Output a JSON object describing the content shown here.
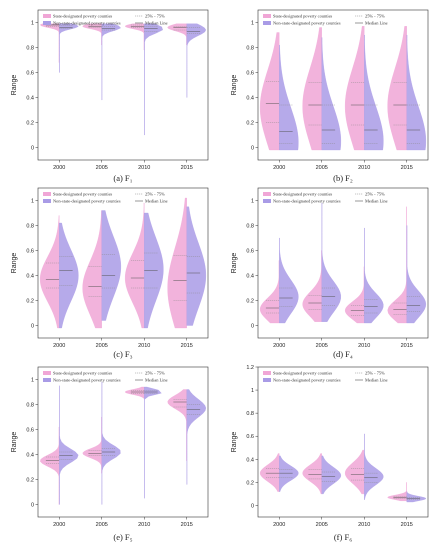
{
  "colors": {
    "state": "#f0a6d6",
    "non_state": "#a99be6",
    "median": "#555555",
    "quartile": "#888888"
  },
  "legend": {
    "state": "State-designated poverty counties",
    "non_state": "Non-state-designated poverty counties",
    "quartile": "25% - 75%",
    "median": "Median Line"
  },
  "chart_data": [
    {
      "type": "violin",
      "caption": "(a) F₁",
      "ylabel": "Range",
      "ylim": [
        -0.1,
        1.1
      ],
      "yticks": [
        0.0,
        0.2,
        0.4,
        0.6,
        0.8,
        1.0
      ],
      "categories": [
        "2000",
        "2005",
        "2010",
        "2015"
      ],
      "series": [
        {
          "name": "State-designated poverty counties",
          "min": [
            0.68,
            0.82,
            0.78,
            0.82
          ],
          "max": [
            0.99,
            0.99,
            0.99,
            0.99
          ],
          "peak": [
            0.98,
            0.97,
            0.97,
            0.96
          ],
          "q1": [
            0.97,
            0.96,
            0.96,
            0.94
          ],
          "median": [
            0.98,
            0.97,
            0.97,
            0.96
          ],
          "q3": [
            0.985,
            0.98,
            0.98,
            0.97
          ]
        },
        {
          "name": "Non-state-designated poverty counties",
          "min": [
            0.6,
            0.38,
            0.1,
            0.4
          ],
          "max": [
            0.99,
            0.99,
            0.99,
            0.99
          ],
          "peak": [
            0.97,
            0.96,
            0.95,
            0.94
          ],
          "q1": [
            0.95,
            0.94,
            0.93,
            0.91
          ],
          "median": [
            0.96,
            0.95,
            0.95,
            0.93
          ],
          "q3": [
            0.975,
            0.97,
            0.97,
            0.96
          ]
        }
      ]
    },
    {
      "type": "violin",
      "caption": "(b) F₂",
      "ylabel": "Range",
      "ylim": [
        -0.1,
        1.1
      ],
      "yticks": [
        0.0,
        0.2,
        0.4,
        0.6,
        0.8,
        1.0
      ],
      "categories": [
        "2000",
        "2005",
        "2010",
        "2015"
      ],
      "series": [
        {
          "name": "State-designated poverty counties",
          "min": [
            -0.02,
            -0.02,
            -0.02,
            -0.02
          ],
          "max": [
            0.92,
            0.96,
            0.97,
            0.97
          ],
          "peak": [
            0.32,
            0.33,
            0.33,
            0.33
          ],
          "q1": [
            0.2,
            0.18,
            0.18,
            0.18
          ],
          "median": [
            0.35,
            0.34,
            0.34,
            0.34
          ],
          "q3": [
            0.53,
            0.52,
            0.52,
            0.52
          ]
        },
        {
          "name": "Non-state-designated poverty counties",
          "min": [
            -0.02,
            -0.02,
            -0.02,
            -0.02
          ],
          "max": [
            0.82,
            0.88,
            0.9,
            0.9
          ],
          "peak": [
            0.04,
            0.05,
            0.05,
            0.05
          ],
          "q1": [
            0.03,
            0.03,
            0.03,
            0.03
          ],
          "median": [
            0.13,
            0.14,
            0.14,
            0.14
          ],
          "q3": [
            0.34,
            0.34,
            0.34,
            0.34
          ]
        }
      ]
    },
    {
      "type": "violin",
      "caption": "(c) F₃",
      "ylabel": "Range",
      "ylim": [
        -0.1,
        1.1
      ],
      "yticks": [
        0.0,
        0.2,
        0.4,
        0.6,
        0.8,
        1.0
      ],
      "categories": [
        "2000",
        "2005",
        "2010",
        "2015"
      ],
      "series": [
        {
          "name": "State-designated poverty counties",
          "min": [
            -0.02,
            -0.02,
            -0.02,
            -0.02
          ],
          "max": [
            0.88,
            0.92,
            0.98,
            1.02
          ],
          "peak": [
            0.37,
            0.3,
            0.38,
            0.3
          ],
          "q1": [
            0.3,
            0.23,
            0.3,
            0.2
          ],
          "median": [
            0.37,
            0.31,
            0.38,
            0.36
          ],
          "q3": [
            0.5,
            0.47,
            0.52,
            0.56
          ]
        },
        {
          "name": "Non-state-designated poverty counties",
          "min": [
            -0.02,
            0.04,
            -0.02,
            0.0
          ],
          "max": [
            0.82,
            0.92,
            0.9,
            0.95
          ],
          "peak": [
            0.4,
            0.47,
            0.45,
            0.4
          ],
          "q1": [
            0.32,
            0.3,
            0.3,
            0.26
          ],
          "median": [
            0.44,
            0.4,
            0.44,
            0.42
          ],
          "q3": [
            0.55,
            0.57,
            0.58,
            0.55
          ]
        }
      ]
    },
    {
      "type": "violin",
      "caption": "(d) F₄",
      "ylabel": "Range",
      "ylim": [
        -0.1,
        1.1
      ],
      "yticks": [
        0.0,
        0.2,
        0.4,
        0.6,
        0.8,
        1.0
      ],
      "categories": [
        "2000",
        "2005",
        "2010",
        "2015"
      ],
      "series": [
        {
          "name": "State-designated poverty counties",
          "min": [
            0.02,
            0.03,
            0.02,
            0.02
          ],
          "max": [
            0.52,
            0.6,
            0.47,
            0.95
          ],
          "peak": [
            0.13,
            0.17,
            0.12,
            0.12
          ],
          "q1": [
            0.1,
            0.13,
            0.08,
            0.09
          ],
          "median": [
            0.14,
            0.18,
            0.12,
            0.13
          ],
          "q3": [
            0.2,
            0.24,
            0.16,
            0.18
          ]
        },
        {
          "name": "Non-state-designated poverty counties",
          "min": [
            0.02,
            0.03,
            0.02,
            0.02
          ],
          "max": [
            0.7,
            0.98,
            0.78,
            0.8
          ],
          "peak": [
            0.23,
            0.23,
            0.16,
            0.17
          ],
          "q1": [
            0.15,
            0.16,
            0.1,
            0.11
          ],
          "median": [
            0.22,
            0.23,
            0.15,
            0.16
          ],
          "q3": [
            0.3,
            0.3,
            0.21,
            0.23
          ]
        }
      ]
    },
    {
      "type": "violin",
      "caption": "(e) F₅",
      "ylabel": "Range",
      "ylim": [
        -0.1,
        1.1
      ],
      "yticks": [
        0.0,
        0.2,
        0.4,
        0.6,
        0.8,
        1.0
      ],
      "categories": [
        "2000",
        "2005",
        "2010",
        "2015"
      ],
      "series": [
        {
          "name": "State-designated poverty counties",
          "min": [
            0.0,
            0.25,
            0.85,
            0.35
          ],
          "max": [
            0.62,
            0.7,
            0.94,
            0.92
          ],
          "peak": [
            0.35,
            0.41,
            0.9,
            0.82
          ],
          "q1": [
            0.33,
            0.39,
            0.89,
            0.78
          ],
          "median": [
            0.35,
            0.41,
            0.9,
            0.82
          ],
          "q3": [
            0.38,
            0.43,
            0.91,
            0.84
          ]
        },
        {
          "name": "Non-state-designated poverty counties",
          "min": [
            0.0,
            0.0,
            0.05,
            0.16
          ],
          "max": [
            0.95,
            0.98,
            0.94,
            0.92
          ],
          "peak": [
            0.39,
            0.42,
            0.9,
            0.77
          ],
          "q1": [
            0.36,
            0.39,
            0.89,
            0.72
          ],
          "median": [
            0.39,
            0.42,
            0.9,
            0.76
          ],
          "q3": [
            0.42,
            0.45,
            0.91,
            0.8
          ]
        }
      ]
    },
    {
      "type": "violin",
      "caption": "(f) F₆",
      "ylabel": "Range",
      "ylim": [
        -0.1,
        1.2
      ],
      "yticks": [
        0.0,
        0.2,
        0.4,
        0.6,
        0.8,
        1.0,
        1.2
      ],
      "categories": [
        "2000",
        "2005",
        "2010",
        "2015"
      ],
      "series": [
        {
          "name": "State-designated poverty counties",
          "min": [
            0.12,
            0.1,
            0.1,
            0.04
          ],
          "max": [
            0.45,
            0.45,
            0.48,
            0.2
          ],
          "peak": [
            0.28,
            0.28,
            0.28,
            0.07
          ],
          "q1": [
            0.24,
            0.23,
            0.22,
            0.06
          ],
          "median": [
            0.28,
            0.27,
            0.27,
            0.07
          ],
          "q3": [
            0.32,
            0.31,
            0.32,
            0.08
          ]
        },
        {
          "name": "Non-state-designated poverty counties",
          "min": [
            0.12,
            0.1,
            0.05,
            0.03
          ],
          "max": [
            0.43,
            0.43,
            0.62,
            0.12
          ],
          "peak": [
            0.28,
            0.26,
            0.25,
            0.06
          ],
          "q1": [
            0.24,
            0.21,
            0.2,
            0.05
          ],
          "median": [
            0.28,
            0.25,
            0.24,
            0.06
          ],
          "q3": [
            0.31,
            0.29,
            0.28,
            0.07
          ]
        }
      ]
    }
  ]
}
